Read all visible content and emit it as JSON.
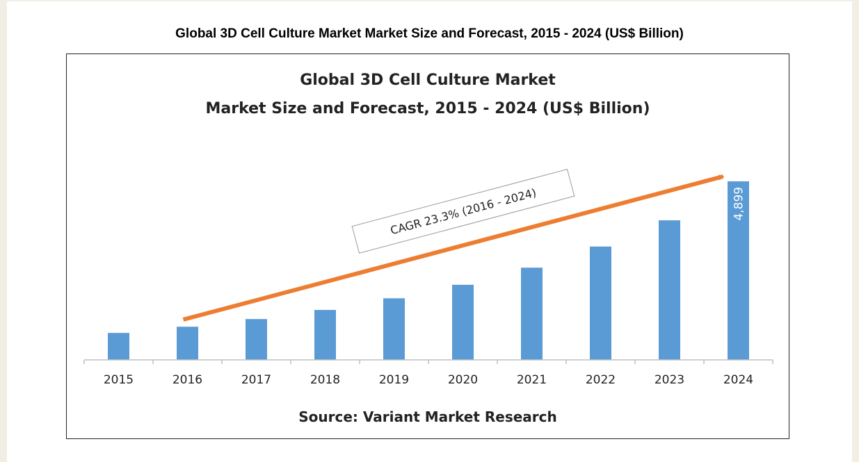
{
  "page": {
    "caption": "Global 3D Cell Culture Market Market Size and Forecast, 2015 - 2024 (US$ Billion)"
  },
  "chart_data": {
    "type": "bar",
    "title_line1": "Global 3D Cell Culture Market",
    "title_line2": "Market Size and Forecast, 2015 - 2024 (US$ Billion)",
    "categories": [
      "2015",
      "2016",
      "2017",
      "2018",
      "2019",
      "2020",
      "2021",
      "2022",
      "2023",
      "2024"
    ],
    "values": [
      0.74,
      0.91,
      1.12,
      1.37,
      1.69,
      2.06,
      2.53,
      3.11,
      3.83,
      4.899
    ],
    "data_labels": {
      "2024": "4,899"
    },
    "bar_color": "#5b9bd5",
    "arrow_color": "#ed7d31",
    "annotation": "CAGR 23.3% (2016 - 2024)",
    "source": "Source: Variant Market Research",
    "ylim": [
      0,
      4.899
    ],
    "grid": false,
    "legend": "none"
  }
}
